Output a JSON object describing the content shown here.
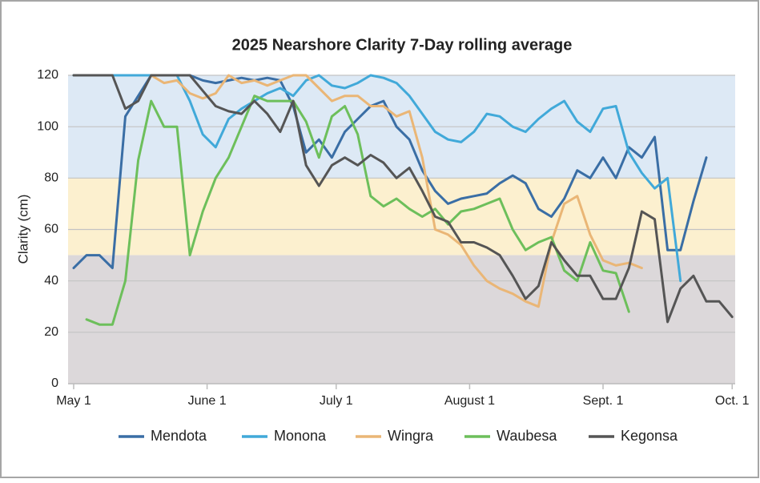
{
  "chart_data": {
    "type": "line",
    "title": "2025 Nearshore Clarity 7-Day rolling average",
    "y_label": "Clarity (cm)",
    "x": [
      0,
      3,
      6,
      9,
      12,
      15,
      18,
      21,
      24,
      27,
      30,
      33,
      36,
      39,
      42,
      45,
      48,
      51,
      54,
      57,
      60,
      63,
      66,
      69,
      72,
      75,
      78,
      81,
      84,
      87,
      90,
      93,
      96,
      99,
      102,
      105,
      108,
      111,
      114,
      117,
      120,
      123,
      126,
      129,
      132,
      135,
      138,
      141,
      144,
      147,
      150,
      153
    ],
    "xlim": [
      -1.3,
      153.7
    ],
    "xticks": [
      {
        "value": 0,
        "label": "May 1"
      },
      {
        "value": 31,
        "label": "June 1"
      },
      {
        "value": 61,
        "label": "July 1"
      },
      {
        "value": 92,
        "label": "August 1"
      },
      {
        "value": 123,
        "label": "Sept. 1"
      },
      {
        "value": 153,
        "label": "Oct. 1"
      }
    ],
    "ylim": [
      0,
      120
    ],
    "yticks": [
      0,
      20,
      40,
      60,
      80,
      100,
      120
    ],
    "grid": true,
    "bands": [
      {
        "from": 80,
        "to": 120,
        "color": "#dde9f5"
      },
      {
        "from": 50,
        "to": 80,
        "color": "#fcf0cf"
      },
      {
        "from": 0,
        "to": 50,
        "color": "#dcd8da"
      }
    ],
    "legend": "bottom",
    "series": [
      {
        "name": "Mendota",
        "color": "#3a6ea5",
        "values": [
          45,
          50,
          50,
          45,
          104,
          112,
          120,
          120,
          120,
          120,
          118,
          117,
          118,
          119,
          118,
          119,
          118,
          108,
          90,
          95,
          88,
          98,
          103,
          108,
          110,
          100,
          95,
          83,
          75,
          70,
          72,
          73,
          74,
          78,
          81,
          78,
          68,
          65,
          72,
          83,
          80,
          88,
          80,
          92,
          88,
          96,
          52,
          52,
          71,
          88,
          null,
          null
        ]
      },
      {
        "name": "Monona",
        "color": "#41a9d9",
        "values": [
          120,
          120,
          120,
          120,
          120,
          120,
          120,
          120,
          120,
          110,
          97,
          92,
          103,
          107,
          110,
          113,
          115,
          112,
          118,
          120,
          116,
          115,
          117,
          120,
          119,
          117,
          112,
          105,
          98,
          95,
          94,
          98,
          105,
          104,
          100,
          98,
          103,
          107,
          110,
          102,
          98,
          107,
          108,
          90,
          82,
          76,
          80,
          40,
          null,
          null,
          null,
          null
        ]
      },
      {
        "name": "Wingra",
        "color": "#eab676",
        "values": [
          null,
          null,
          null,
          null,
          null,
          null,
          120,
          117,
          118,
          113,
          111,
          113,
          120,
          117,
          118,
          116,
          118,
          120,
          120,
          115,
          110,
          112,
          112,
          108,
          108,
          104,
          106,
          88,
          60,
          58,
          54,
          46,
          40,
          37,
          35,
          32,
          30,
          55,
          70,
          73,
          58,
          48,
          46,
          47,
          45,
          null,
          null,
          null,
          null,
          null,
          null,
          null
        ]
      },
      {
        "name": "Waubesa",
        "color": "#6dbf5b",
        "values": [
          null,
          25,
          23,
          23,
          40,
          87,
          110,
          100,
          100,
          50,
          67,
          80,
          88,
          100,
          112,
          110,
          110,
          110,
          102,
          88,
          104,
          108,
          97,
          73,
          69,
          72,
          68,
          65,
          68,
          62,
          67,
          68,
          70,
          72,
          60,
          52,
          55,
          57,
          44,
          40,
          55,
          44,
          43,
          28,
          null,
          null,
          null,
          null,
          null,
          null,
          null,
          null
        ]
      },
      {
        "name": "Kegonsa",
        "color": "#555555",
        "values": [
          120,
          120,
          120,
          120,
          107,
          110,
          120,
          120,
          120,
          120,
          114,
          108,
          106,
          105,
          110,
          105,
          98,
          110,
          85,
          77,
          85,
          88,
          85,
          89,
          86,
          80,
          84,
          75,
          65,
          63,
          55,
          55,
          53,
          50,
          42,
          33,
          38,
          55,
          48,
          42,
          42,
          33,
          33,
          45,
          67,
          64,
          24,
          37,
          42,
          32,
          32,
          26
        ]
      }
    ]
  }
}
